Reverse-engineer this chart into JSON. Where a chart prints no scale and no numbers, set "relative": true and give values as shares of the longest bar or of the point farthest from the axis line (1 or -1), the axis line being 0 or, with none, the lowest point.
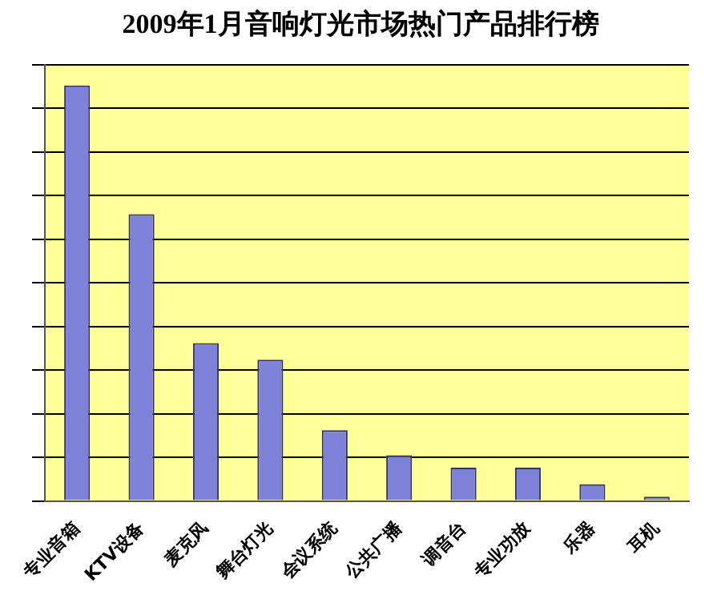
{
  "chart_data": {
    "type": "bar",
    "title": "2009年1月音响灯光市场热门产品排行榜",
    "categories": [
      "专业音箱",
      "KTV设备",
      "麦克风",
      "舞台灯光",
      "会议系统",
      "公共广播",
      "调音台",
      "专业功放",
      "乐器",
      "耳机"
    ],
    "values": [
      1,
      0.69,
      0.38,
      0.34,
      0.17,
      0.11,
      0.08,
      0.08,
      0.04,
      0.01
    ],
    "color": "#7e82d8",
    "relative": true,
    "grid": "y",
    "legend": false
  }
}
